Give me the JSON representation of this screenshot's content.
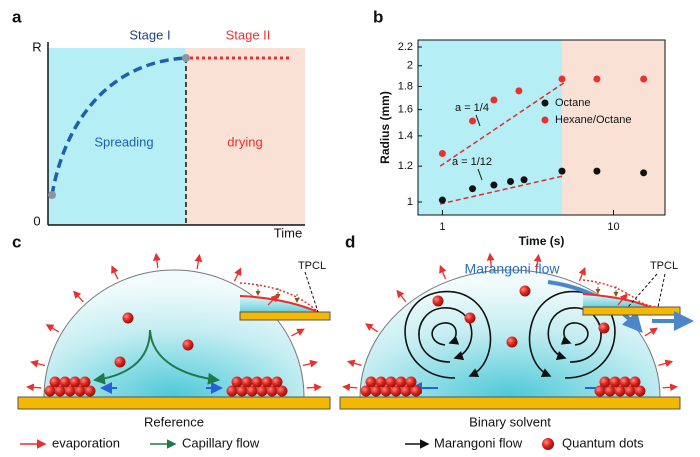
{
  "panel_a": {
    "label": "a",
    "y_top": "R",
    "y_zero": "0",
    "x_label": "Time",
    "stage_1": "Stage I",
    "stage_2": "Stage II",
    "region_1": "Spreading",
    "region_2": "drying"
  },
  "chart_data": {
    "type": "scatter",
    "label": "b",
    "x_label": "Time (s)",
    "y_label": "Radius (mm)",
    "log_x": true,
    "log_y": true,
    "xlim": [
      0.72,
      20
    ],
    "xticks": [
      1,
      10
    ],
    "ylim": [
      0.936,
      2.28
    ],
    "yticks": [
      1,
      1.2,
      1.4,
      1.6,
      1.8,
      2,
      2.2
    ],
    "stage_boundary": 5,
    "region_colors": [
      "#b6eef5",
      "#f9e2d5"
    ],
    "series": [
      {
        "name": "Octane",
        "color": "#111111",
        "x": [
          1,
          1.5,
          2,
          2.5,
          3,
          5,
          8,
          15
        ],
        "values": [
          1.01,
          1.07,
          1.09,
          1.11,
          1.12,
          1.17,
          1.17,
          1.16
        ]
      },
      {
        "name": "Hexane/Octane",
        "color": "#e8312f",
        "x": [
          1,
          1.5,
          2,
          2.8,
          5,
          8,
          15
        ],
        "values": [
          1.28,
          1.51,
          1.68,
          1.76,
          1.87,
          1.87,
          1.87
        ]
      }
    ],
    "fits": [
      {
        "label": "a = 1/4",
        "color": "#d9302c",
        "x": [
          0.97,
          5.2
        ],
        "values": [
          1.2,
          1.84
        ]
      },
      {
        "label": "a = 1/12",
        "color": "#d9302c",
        "x": [
          0.97,
          5
        ],
        "values": [
          0.99,
          1.14
        ]
      }
    ]
  },
  "panel_c": {
    "label": "c",
    "inset_label": "TPCL",
    "caption": "Reference"
  },
  "panel_d": {
    "label": "d",
    "flow_label": "Marangoni flow",
    "inset_label": "TPCL",
    "caption": "Binary solvent"
  },
  "legend": {
    "items": [
      {
        "label": "evaporation"
      },
      {
        "label": "Capillary flow"
      },
      {
        "label": "Marangoni flow"
      },
      {
        "label": "Quantum dots"
      }
    ]
  }
}
